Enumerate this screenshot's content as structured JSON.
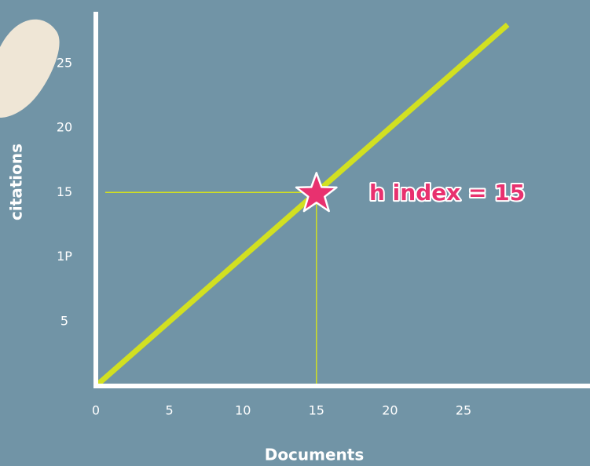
{
  "chart_data": {
    "type": "line",
    "x_label": "Documents",
    "y_label": "citations",
    "annotation": "h index = 15",
    "series": [
      {
        "color": "#d2e021",
        "x": [
          0,
          28
        ],
        "values": [
          0,
          28
        ]
      }
    ],
    "h_point": {
      "x": 15,
      "y": 15,
      "color": "#e8316f"
    },
    "guide_color": "#d2e021",
    "axis_color": "#ffffff",
    "xlim": [
      0,
      33.6
    ],
    "ylim": [
      0,
      29
    ],
    "xticks": [
      0,
      5,
      10,
      15,
      20,
      25
    ],
    "yticks": [
      5,
      {
        "value": 10,
        "label": "1P"
      },
      15,
      20,
      25
    ]
  }
}
